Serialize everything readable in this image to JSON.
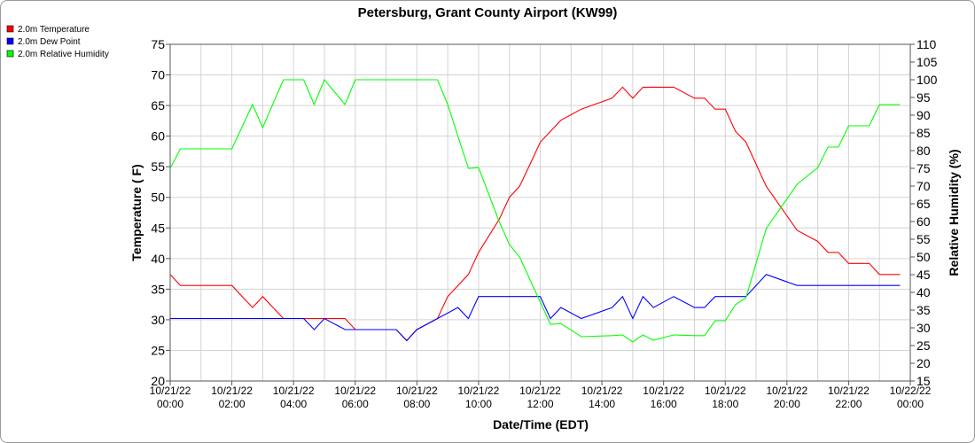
{
  "chart_data": {
    "type": "line",
    "title": "Petersburg, Grant County Airport (KW99)",
    "xlabel": "Date/Time (EDT)",
    "ylabel_left": "Temperature ( F)",
    "ylabel_right": "Relative Humidity (%)",
    "ylim_left": [
      20,
      75
    ],
    "ylim_right": [
      15,
      110
    ],
    "y_ticks_left": [
      20,
      25,
      30,
      35,
      40,
      45,
      50,
      55,
      60,
      65,
      70,
      75
    ],
    "y_ticks_right": [
      15,
      20,
      25,
      30,
      35,
      40,
      45,
      50,
      55,
      60,
      65,
      70,
      75,
      80,
      85,
      90,
      95,
      100,
      105,
      110
    ],
    "grid": true,
    "legend_position": "top-left",
    "x_ticks": [
      {
        "hour": 0,
        "date": "10/21/22",
        "time": "00:00"
      },
      {
        "hour": 2,
        "date": "10/21/22",
        "time": "02:00"
      },
      {
        "hour": 4,
        "date": "10/21/22",
        "time": "04:00"
      },
      {
        "hour": 6,
        "date": "10/21/22",
        "time": "06:00"
      },
      {
        "hour": 8,
        "date": "10/21/22",
        "time": "08:00"
      },
      {
        "hour": 10,
        "date": "10/21/22",
        "time": "10:00"
      },
      {
        "hour": 12,
        "date": "10/21/22",
        "time": "12:00"
      },
      {
        "hour": 14,
        "date": "10/21/22",
        "time": "14:00"
      },
      {
        "hour": 16,
        "date": "10/21/22",
        "time": "16:00"
      },
      {
        "hour": 18,
        "date": "10/21/22",
        "time": "18:00"
      },
      {
        "hour": 20,
        "date": "10/21/22",
        "time": "20:00"
      },
      {
        "hour": 22,
        "date": "10/21/22",
        "time": "22:00"
      },
      {
        "hour": 24,
        "date": "10/22/22",
        "time": "00:00"
      }
    ],
    "series": [
      {
        "name": "2.0m Temperature",
        "color": "#ff0000",
        "axis": "left",
        "points": [
          [
            0,
            37.4
          ],
          [
            0.33,
            35.6
          ],
          [
            2,
            35.6
          ],
          [
            2.67,
            32
          ],
          [
            3,
            33.8
          ],
          [
            3.67,
            30.2
          ],
          [
            5.67,
            30.2
          ],
          [
            6,
            28.4
          ],
          [
            7.33,
            28.4
          ],
          [
            7.67,
            26.6
          ],
          [
            8,
            28.4
          ],
          [
            8.67,
            30.2
          ],
          [
            9,
            33.8
          ],
          [
            9.67,
            37.4
          ],
          [
            10,
            41
          ],
          [
            10.67,
            46.4
          ],
          [
            11,
            50
          ],
          [
            11.33,
            51.8
          ],
          [
            11.67,
            55.4
          ],
          [
            12,
            59
          ],
          [
            12.67,
            62.6
          ],
          [
            13.33,
            64.4
          ],
          [
            14.33,
            66.2
          ],
          [
            14.67,
            68
          ],
          [
            15,
            66.2
          ],
          [
            15.33,
            68
          ],
          [
            16.33,
            68
          ],
          [
            17,
            66.2
          ],
          [
            17.33,
            66.2
          ],
          [
            17.67,
            64.4
          ],
          [
            18,
            64.4
          ],
          [
            18.33,
            60.8
          ],
          [
            18.67,
            59
          ],
          [
            19.33,
            51.8
          ],
          [
            20.33,
            44.6
          ],
          [
            21,
            42.8
          ],
          [
            21.33,
            41
          ],
          [
            21.67,
            41
          ],
          [
            22,
            39.2
          ],
          [
            22.67,
            39.2
          ],
          [
            23,
            37.4
          ],
          [
            23.67,
            37.4
          ]
        ]
      },
      {
        "name": "2.0m Dew Point",
        "color": "#0000ff",
        "axis": "left",
        "points": [
          [
            0,
            30.2
          ],
          [
            4.33,
            30.2
          ],
          [
            4.67,
            28.4
          ],
          [
            5,
            30.2
          ],
          [
            5.67,
            28.4
          ],
          [
            7.33,
            28.4
          ],
          [
            7.67,
            26.6
          ],
          [
            8,
            28.4
          ],
          [
            8.67,
            30.2
          ],
          [
            9.33,
            32
          ],
          [
            9.67,
            30.2
          ],
          [
            10,
            33.8
          ],
          [
            12,
            33.8
          ],
          [
            12.33,
            30.2
          ],
          [
            12.67,
            32
          ],
          [
            13.33,
            30.2
          ],
          [
            14.33,
            32
          ],
          [
            14.67,
            33.8
          ],
          [
            15,
            30.2
          ],
          [
            15.33,
            33.8
          ],
          [
            15.67,
            32
          ],
          [
            16.33,
            33.8
          ],
          [
            17,
            32
          ],
          [
            17.33,
            32
          ],
          [
            17.67,
            33.8
          ],
          [
            18.67,
            33.8
          ],
          [
            19.33,
            37.4
          ],
          [
            20.33,
            35.6
          ],
          [
            23.67,
            35.6
          ]
        ]
      },
      {
        "name": "2.0m Relative Humidity",
        "color": "#00ff00",
        "axis": "right",
        "points": [
          [
            0,
            75
          ],
          [
            0.33,
            80.5
          ],
          [
            2,
            80.5
          ],
          [
            2.67,
            93
          ],
          [
            3,
            86.5
          ],
          [
            3.67,
            100
          ],
          [
            4.33,
            100
          ],
          [
            4.67,
            93
          ],
          [
            5,
            100
          ],
          [
            5.67,
            93
          ],
          [
            6,
            100
          ],
          [
            8.67,
            100
          ],
          [
            9,
            93
          ],
          [
            9.67,
            75
          ],
          [
            10,
            75.2
          ],
          [
            10.67,
            60
          ],
          [
            11,
            53.5
          ],
          [
            11.33,
            50
          ],
          [
            12.33,
            31
          ],
          [
            12.67,
            31.2
          ],
          [
            13.33,
            27.5
          ],
          [
            14.33,
            27.8
          ],
          [
            14.67,
            28
          ],
          [
            15,
            26
          ],
          [
            15.33,
            28
          ],
          [
            15.67,
            26.5
          ],
          [
            16.33,
            28
          ],
          [
            17,
            27.8
          ],
          [
            17.33,
            27.8
          ],
          [
            17.67,
            32
          ],
          [
            18,
            32
          ],
          [
            18.33,
            36.5
          ],
          [
            18.67,
            38.5
          ],
          [
            19.33,
            58
          ],
          [
            20.33,
            70.5
          ],
          [
            21,
            75.2
          ],
          [
            21.33,
            81
          ],
          [
            21.67,
            81
          ],
          [
            22,
            87
          ],
          [
            22.67,
            87
          ],
          [
            23,
            93
          ],
          [
            23.67,
            93
          ]
        ]
      }
    ]
  }
}
